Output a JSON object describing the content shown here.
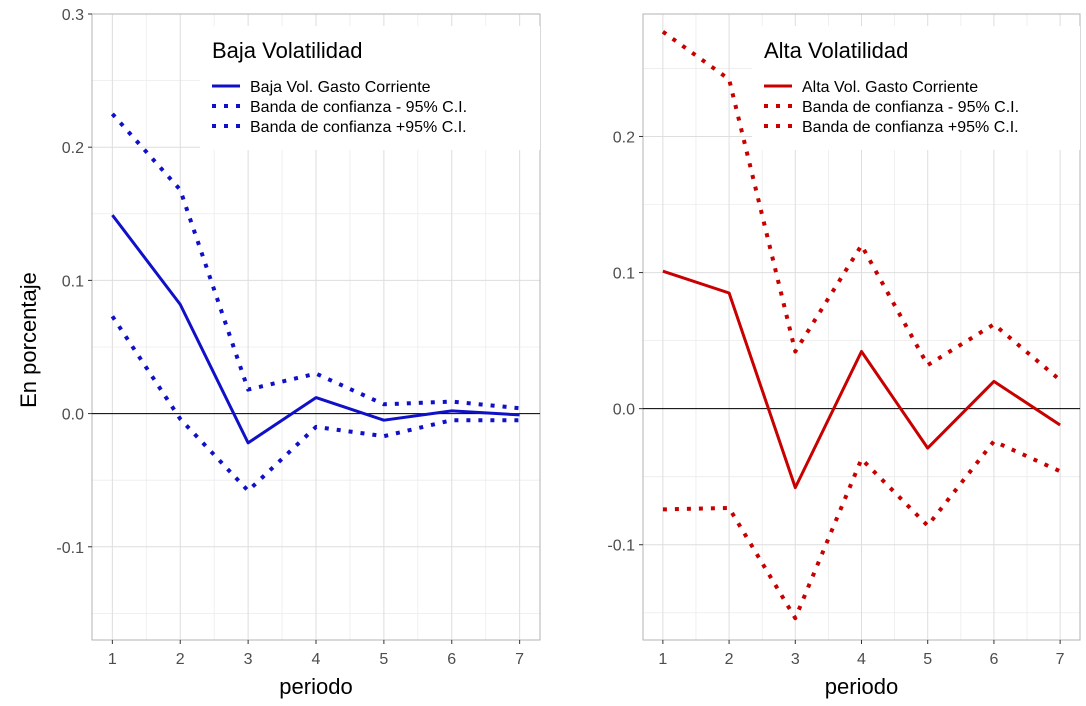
{
  "figure": {
    "ylabel": "En porcentaje"
  },
  "chart_data": [
    {
      "type": "line",
      "xlabel": "periodo",
      "ylabel": "En porcentaje",
      "x": [
        1,
        2,
        3,
        4,
        5,
        6,
        7
      ],
      "xlim": [
        0.7,
        7.3
      ],
      "ylim": [
        -0.17,
        0.3
      ],
      "y_ticks": [
        -0.1,
        0.0,
        0.1,
        0.2,
        0.3
      ],
      "y_tick_labels": [
        "-0.1",
        "0.0",
        "0.1",
        "0.2",
        "0.3"
      ],
      "x_tick_labels": [
        "1",
        "2",
        "3",
        "4",
        "5",
        "6",
        "7"
      ],
      "grid": true,
      "zero_line": true,
      "legend": {
        "title": "Baja Volatilidad",
        "position": "top-right"
      },
      "color": "#1010c8",
      "series": [
        {
          "name": "Baja Vol. Gasto Corriente",
          "style": "solid",
          "values": [
            0.149,
            0.082,
            -0.022,
            0.012,
            -0.005,
            0.002,
            -0.001
          ]
        },
        {
          "name": "Banda de confianza - 95% C.I.",
          "style": "dotted",
          "values": [
            0.073,
            -0.004,
            -0.058,
            -0.01,
            -0.017,
            -0.005,
            -0.005
          ]
        },
        {
          "name": "Banda de confianza +95% C.I.",
          "style": "dotted",
          "values": [
            0.225,
            0.168,
            0.018,
            0.03,
            0.007,
            0.009,
            0.004
          ]
        }
      ]
    },
    {
      "type": "line",
      "xlabel": "periodo",
      "ylabel": "",
      "x": [
        1,
        2,
        3,
        4,
        5,
        6,
        7
      ],
      "xlim": [
        0.7,
        7.3
      ],
      "ylim": [
        -0.17,
        0.29
      ],
      "y_ticks": [
        -0.1,
        0.0,
        0.1,
        0.2
      ],
      "y_tick_labels": [
        "-0.1",
        "0.0",
        "0.1",
        "0.2"
      ],
      "x_tick_labels": [
        "1",
        "2",
        "3",
        "4",
        "5",
        "6",
        "7"
      ],
      "grid": true,
      "zero_line": true,
      "legend": {
        "title": "Alta Volatilidad",
        "position": "top-right"
      },
      "color": "#c80000",
      "series": [
        {
          "name": "Alta Vol. Gasto Corriente",
          "style": "solid",
          "values": [
            0.101,
            0.085,
            -0.058,
            0.042,
            -0.029,
            0.02,
            -0.012
          ]
        },
        {
          "name": "Banda de confianza - 95% C.I.",
          "style": "dotted",
          "values": [
            -0.074,
            -0.073,
            -0.154,
            -0.037,
            -0.086,
            -0.024,
            -0.046
          ]
        },
        {
          "name": "Banda de confianza +95% C.I.",
          "style": "dotted",
          "values": [
            0.277,
            0.242,
            0.042,
            0.12,
            0.032,
            0.062,
            0.021
          ]
        }
      ]
    }
  ]
}
